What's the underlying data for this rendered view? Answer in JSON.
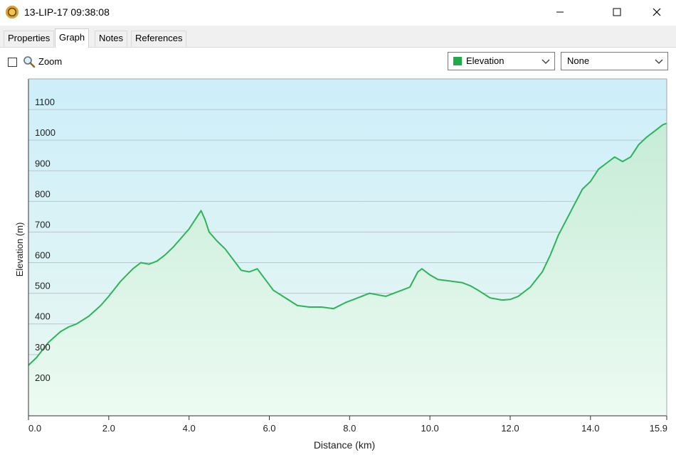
{
  "window": {
    "title": "13-LIP-17 09:38:08"
  },
  "tabs": [
    {
      "label": "Properties",
      "active": false
    },
    {
      "label": "Graph",
      "active": true
    },
    {
      "label": "Notes",
      "active": false
    },
    {
      "label": "References",
      "active": false
    }
  ],
  "toolbar": {
    "zoom_label": "Zoom",
    "zoom_checked": false,
    "series_select": {
      "value": "Elevation",
      "swatch_color": "#1faa4b"
    },
    "second_select": {
      "value": "None"
    }
  },
  "colors": {
    "line": "#2db35a",
    "fill_top": "#cdeefa",
    "fill_bottom": "#eaf8f1",
    "area_top": "#c6ecd6",
    "area_bottom": "#edfbf3"
  },
  "chart_data": {
    "type": "area",
    "xlabel": "Distance  (km)",
    "ylabel": "Elevation (m)",
    "xlim": [
      0,
      15.9
    ],
    "ylim": [
      100,
      1200
    ],
    "x_ticks": [
      {
        "value": 0,
        "label": "0.0"
      },
      {
        "value": 2,
        "label": "2.0"
      },
      {
        "value": 4,
        "label": "4.0"
      },
      {
        "value": 6,
        "label": "6.0"
      },
      {
        "value": 8,
        "label": "8.0"
      },
      {
        "value": 10,
        "label": "10.0"
      },
      {
        "value": 12,
        "label": "12.0"
      },
      {
        "value": 14,
        "label": "14.0"
      },
      {
        "value": 15.9,
        "label": "15.9"
      }
    ],
    "y_ticks": [
      {
        "value": 200,
        "label": "200"
      },
      {
        "value": 300,
        "label": "300"
      },
      {
        "value": 400,
        "label": "400"
      },
      {
        "value": 500,
        "label": "500"
      },
      {
        "value": 600,
        "label": "600"
      },
      {
        "value": 700,
        "label": "700"
      },
      {
        "value": 800,
        "label": "800"
      },
      {
        "value": 900,
        "label": "900"
      },
      {
        "value": 1000,
        "label": "1000"
      },
      {
        "value": 1100,
        "label": "1100"
      }
    ],
    "grid": true,
    "series": [
      {
        "x": [
          0.0,
          0.2,
          0.5,
          0.8,
          1.0,
          1.2,
          1.5,
          1.8,
          2.0,
          2.3,
          2.6,
          2.8,
          3.0,
          3.2,
          3.4,
          3.6,
          3.8,
          4.0,
          4.2,
          4.3,
          4.4,
          4.5,
          4.7,
          4.9,
          5.1,
          5.3,
          5.5,
          5.7,
          5.9,
          6.1,
          6.4,
          6.7,
          7.0,
          7.3,
          7.6,
          7.9,
          8.1,
          8.3,
          8.5,
          8.7,
          8.9,
          9.1,
          9.3,
          9.5,
          9.7,
          9.8,
          10.0,
          10.2,
          10.5,
          10.8,
          11.0,
          11.2,
          11.5,
          11.8,
          12.0,
          12.2,
          12.5,
          12.8,
          13.0,
          13.2,
          13.4,
          13.6,
          13.8,
          14.0,
          14.2,
          14.4,
          14.6,
          14.8,
          15.0,
          15.2,
          15.4,
          15.6,
          15.8,
          15.9
        ],
        "y": [
          265,
          290,
          340,
          375,
          390,
          400,
          425,
          460,
          490,
          540,
          580,
          600,
          595,
          605,
          625,
          650,
          680,
          710,
          750,
          770,
          740,
          700,
          670,
          645,
          610,
          575,
          570,
          580,
          545,
          510,
          485,
          460,
          455,
          455,
          450,
          470,
          480,
          490,
          500,
          495,
          490,
          500,
          510,
          520,
          570,
          580,
          560,
          545,
          540,
          535,
          525,
          510,
          485,
          478,
          480,
          490,
          520,
          570,
          625,
          690,
          740,
          790,
          840,
          865,
          905,
          925,
          945,
          930,
          945,
          985,
          1010,
          1030,
          1050,
          1055
        ]
      }
    ]
  }
}
